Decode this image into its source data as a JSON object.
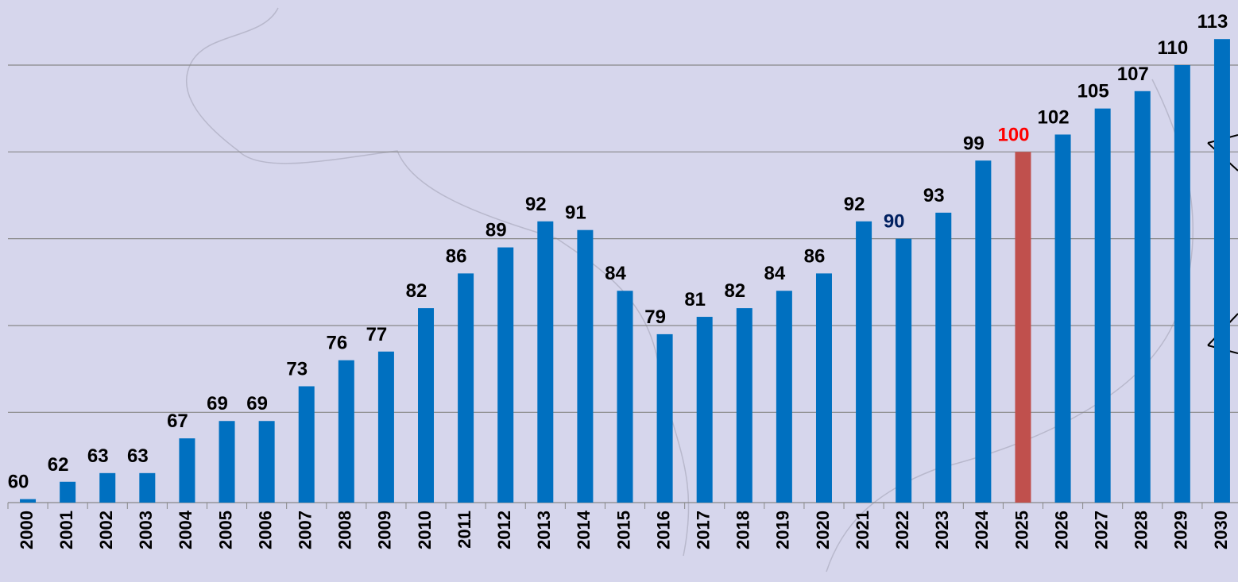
{
  "chart_data": {
    "type": "bar",
    "categories": [
      "2000",
      "2001",
      "2002",
      "2003",
      "2004",
      "2005",
      "2006",
      "2007",
      "2008",
      "2009",
      "2010",
      "2011",
      "2012",
      "2013",
      "2014",
      "2015",
      "2016",
      "2017",
      "2018",
      "2019",
      "2020",
      "2021",
      "2022",
      "2023",
      "2024",
      "2025",
      "2026",
      "2027",
      "2028",
      "2029",
      "2030"
    ],
    "values": [
      60,
      62,
      63,
      63,
      67,
      69,
      69,
      73,
      76,
      77,
      82,
      86,
      89,
      92,
      91,
      84,
      79,
      81,
      82,
      84,
      86,
      92,
      90,
      93,
      99,
      100,
      102,
      105,
      107,
      110,
      113
    ],
    "color": "#0070c0",
    "highlight": {
      "index": 25,
      "color": "#c0504d",
      "label_color": "#ff0000"
    },
    "secondary_label": {
      "index": 22,
      "label_color": "#002060"
    },
    "ylim": [
      59.6,
      117.5
    ],
    "yticks": [
      70,
      80,
      90,
      100,
      110
    ],
    "grid": true
  }
}
